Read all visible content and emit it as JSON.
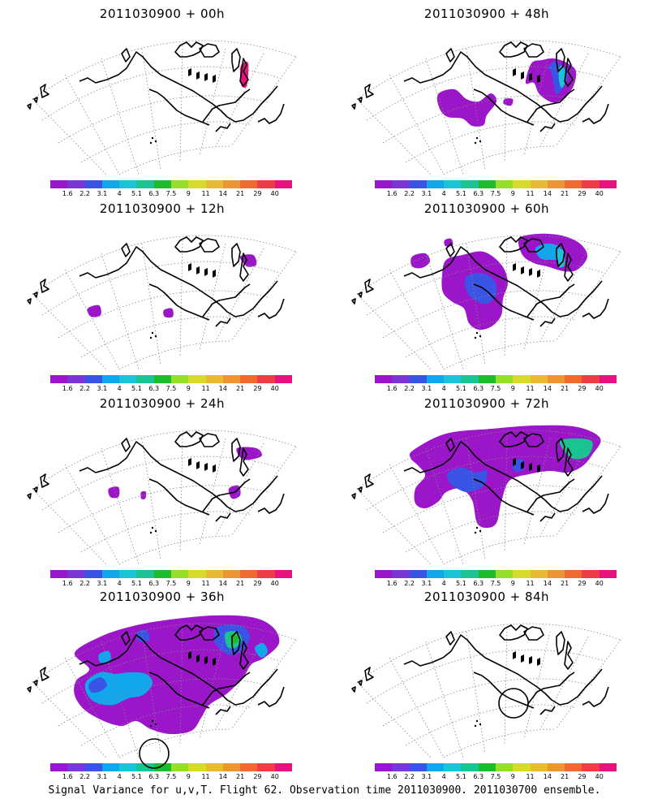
{
  "colors": [
    "#9b16c8",
    "#7a36d6",
    "#3a55e6",
    "#12a7ec",
    "#1bc3d8",
    "#19c492",
    "#1cbc2c",
    "#97de2a",
    "#d6da2c",
    "#e8ba33",
    "#ec9534",
    "#f06a2f",
    "#ee3d46",
    "#e8127e"
  ],
  "colorbar_labels": [
    "1.6",
    "2.2",
    "3.1",
    "4",
    "5.1",
    "6.3",
    "7.5",
    "9",
    "11",
    "14",
    "21",
    "29",
    "40"
  ],
  "panels": [
    {
      "title": "2011030900 + 00h"
    },
    {
      "title": "2011030900 + 48h"
    },
    {
      "title": "2011030900 + 12h"
    },
    {
      "title": "2011030900 + 60h"
    },
    {
      "title": "2011030900 + 24h"
    },
    {
      "title": "2011030900 + 72h"
    },
    {
      "title": "2011030900 + 36h"
    },
    {
      "title": "2011030900 + 84h"
    }
  ],
  "footer": "Signal Variance for u,v,T. Flight 62. Observation time 2011030900. 2011030700 ensemble."
}
